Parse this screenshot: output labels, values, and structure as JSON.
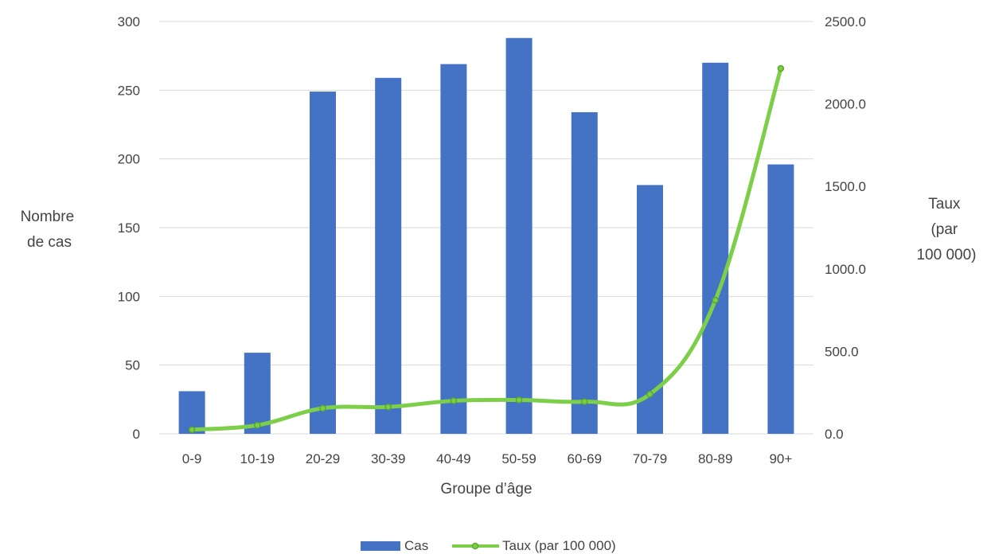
{
  "chart_data": {
    "type": "bar",
    "combo": "bar+line",
    "categories": [
      "0-9",
      "10-19",
      "20-29",
      "30-39",
      "40-49",
      "50-59",
      "60-69",
      "70-79",
      "80-89",
      "90+"
    ],
    "series": [
      {
        "name": "Cas",
        "type": "bar",
        "axis": "left",
        "color": "#4472C4",
        "values": [
          31,
          59,
          249,
          259,
          269,
          288,
          234,
          181,
          270,
          196
        ]
      },
      {
        "name": "Taux (par 100 000)",
        "type": "line",
        "axis": "right",
        "color": "#7DCF4A",
        "marker": "circle",
        "values": [
          25,
          52,
          155,
          163,
          200,
          205,
          195,
          240,
          810,
          2215
        ]
      }
    ],
    "xlabel": "Groupe d’âge",
    "ylabel_lines": [
      "Nombre",
      "de cas"
    ],
    "y2label_lines": [
      "Taux",
      "(par",
      "100 000)"
    ],
    "ylim": [
      0,
      300
    ],
    "yticks": [
      0,
      50,
      100,
      150,
      200,
      250,
      300
    ],
    "y2lim": [
      0,
      2500
    ],
    "y2ticks": [
      "0.0",
      "500.0",
      "1000.0",
      "1500.0",
      "2000.0",
      "2500.0"
    ],
    "grid": true,
    "legend": "bottom"
  }
}
